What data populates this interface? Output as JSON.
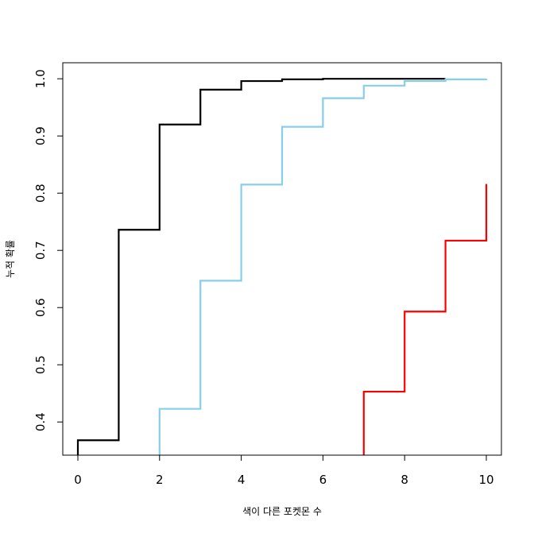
{
  "chart_data": {
    "type": "line",
    "step": true,
    "title": "",
    "xlabel": "색이 다른 포켓몬 수",
    "ylabel": "누적 확률",
    "xlim": [
      0,
      10
    ],
    "ylim": [
      0.342,
      1.028
    ],
    "x_ticks": [
      0,
      2,
      4,
      6,
      8,
      10
    ],
    "y_ticks": [
      0.4,
      0.5,
      0.6,
      0.7,
      0.8,
      0.9,
      1.0
    ],
    "x_tick_labels": [
      "0",
      "2",
      "4",
      "6",
      "8",
      "10"
    ],
    "y_tick_labels": [
      "0.4",
      "0.5",
      "0.6",
      "0.7",
      "0.8",
      "0.9",
      "1.0"
    ],
    "grid": false,
    "legend": "none",
    "series": [
      {
        "color": "#000000",
        "x": [
          0,
          1,
          2,
          3,
          4,
          5,
          6,
          7,
          8,
          9
        ],
        "y": [
          0.368,
          0.736,
          0.92,
          0.981,
          0.996,
          0.999,
          1.0,
          1.0,
          1.0,
          1.0
        ]
      },
      {
        "color": "#87CEEB",
        "x": [
          2,
          3,
          4,
          5,
          6,
          7,
          8,
          9,
          10
        ],
        "y": [
          0.423,
          0.647,
          0.815,
          0.916,
          0.966,
          0.988,
          0.996,
          0.999,
          1.0
        ]
      },
      {
        "color": "#FF0000",
        "x": [
          7,
          8,
          9,
          10
        ],
        "y": [
          0.453,
          0.593,
          0.717,
          0.816
        ]
      }
    ]
  }
}
